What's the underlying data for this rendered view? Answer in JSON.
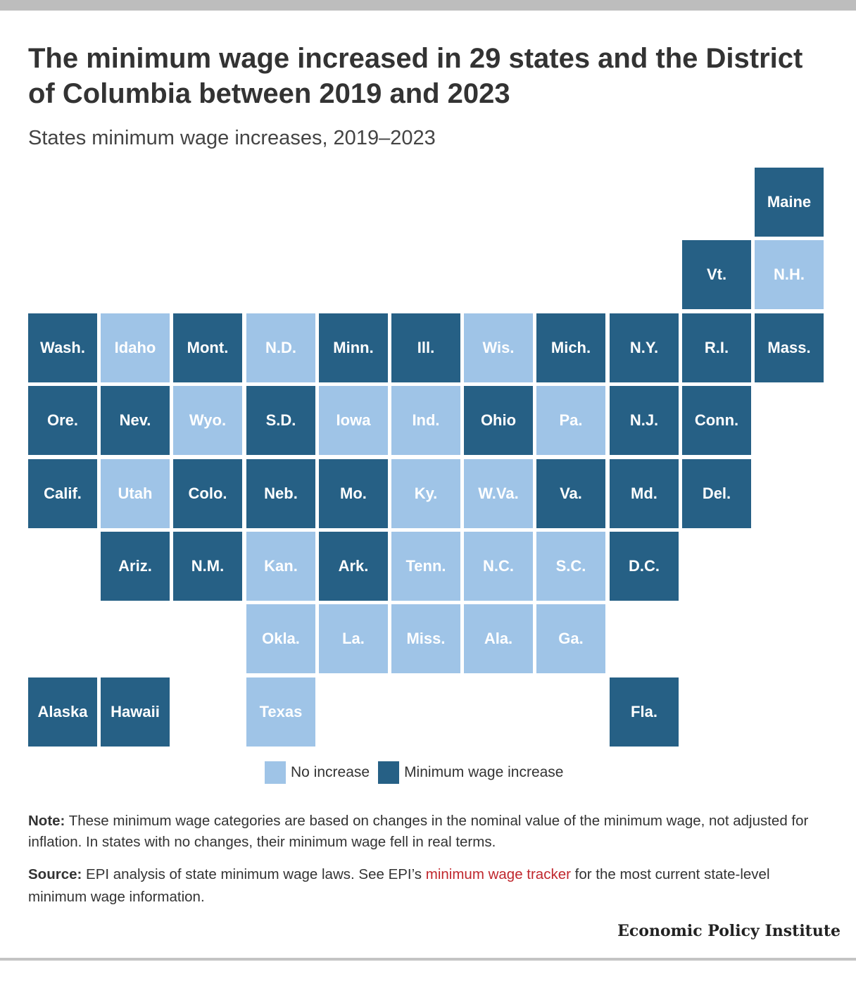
{
  "header": {
    "title": "The minimum wage increased in 29 states and the District of Columbia between 2019 and 2023",
    "subtitle": "States minimum wage increases, 2019–2023"
  },
  "chart_data": {
    "type": "tile-grid map",
    "categories": [
      {
        "key": "no",
        "label": "No increase",
        "color": "#9fc4e7"
      },
      {
        "key": "inc",
        "label": "Minimum wage increase",
        "color": "#266085"
      }
    ],
    "states": [
      {
        "name": "Maine",
        "row": 0,
        "col": 10,
        "category": "inc"
      },
      {
        "name": "Vt.",
        "row": 1,
        "col": 9,
        "category": "inc"
      },
      {
        "name": "N.H.",
        "row": 1,
        "col": 10,
        "category": "no"
      },
      {
        "name": "Wash.",
        "row": 2,
        "col": 0,
        "category": "inc"
      },
      {
        "name": "Idaho",
        "row": 2,
        "col": 1,
        "category": "no"
      },
      {
        "name": "Mont.",
        "row": 2,
        "col": 2,
        "category": "inc"
      },
      {
        "name": "N.D.",
        "row": 2,
        "col": 3,
        "category": "no"
      },
      {
        "name": "Minn.",
        "row": 2,
        "col": 4,
        "category": "inc"
      },
      {
        "name": "Ill.",
        "row": 2,
        "col": 5,
        "category": "inc"
      },
      {
        "name": "Wis.",
        "row": 2,
        "col": 6,
        "category": "no"
      },
      {
        "name": "Mich.",
        "row": 2,
        "col": 7,
        "category": "inc"
      },
      {
        "name": "N.Y.",
        "row": 2,
        "col": 8,
        "category": "inc"
      },
      {
        "name": "R.I.",
        "row": 2,
        "col": 9,
        "category": "inc"
      },
      {
        "name": "Mass.",
        "row": 2,
        "col": 10,
        "category": "inc"
      },
      {
        "name": "Ore.",
        "row": 3,
        "col": 0,
        "category": "inc"
      },
      {
        "name": "Nev.",
        "row": 3,
        "col": 1,
        "category": "inc"
      },
      {
        "name": "Wyo.",
        "row": 3,
        "col": 2,
        "category": "no"
      },
      {
        "name": "S.D.",
        "row": 3,
        "col": 3,
        "category": "inc"
      },
      {
        "name": "Iowa",
        "row": 3,
        "col": 4,
        "category": "no"
      },
      {
        "name": "Ind.",
        "row": 3,
        "col": 5,
        "category": "no"
      },
      {
        "name": "Ohio",
        "row": 3,
        "col": 6,
        "category": "inc"
      },
      {
        "name": "Pa.",
        "row": 3,
        "col": 7,
        "category": "no"
      },
      {
        "name": "N.J.",
        "row": 3,
        "col": 8,
        "category": "inc"
      },
      {
        "name": "Conn.",
        "row": 3,
        "col": 9,
        "category": "inc"
      },
      {
        "name": "Calif.",
        "row": 4,
        "col": 0,
        "category": "inc"
      },
      {
        "name": "Utah",
        "row": 4,
        "col": 1,
        "category": "no"
      },
      {
        "name": "Colo.",
        "row": 4,
        "col": 2,
        "category": "inc"
      },
      {
        "name": "Neb.",
        "row": 4,
        "col": 3,
        "category": "inc"
      },
      {
        "name": "Mo.",
        "row": 4,
        "col": 4,
        "category": "inc"
      },
      {
        "name": "Ky.",
        "row": 4,
        "col": 5,
        "category": "no"
      },
      {
        "name": "W.Va.",
        "row": 4,
        "col": 6,
        "category": "no"
      },
      {
        "name": "Va.",
        "row": 4,
        "col": 7,
        "category": "inc"
      },
      {
        "name": "Md.",
        "row": 4,
        "col": 8,
        "category": "inc"
      },
      {
        "name": "Del.",
        "row": 4,
        "col": 9,
        "category": "inc"
      },
      {
        "name": "Ariz.",
        "row": 5,
        "col": 1,
        "category": "inc"
      },
      {
        "name": "N.M.",
        "row": 5,
        "col": 2,
        "category": "inc"
      },
      {
        "name": "Kan.",
        "row": 5,
        "col": 3,
        "category": "no"
      },
      {
        "name": "Ark.",
        "row": 5,
        "col": 4,
        "category": "inc"
      },
      {
        "name": "Tenn.",
        "row": 5,
        "col": 5,
        "category": "no"
      },
      {
        "name": "N.C.",
        "row": 5,
        "col": 6,
        "category": "no"
      },
      {
        "name": "S.C.",
        "row": 5,
        "col": 7,
        "category": "no"
      },
      {
        "name": "D.C.",
        "row": 5,
        "col": 8,
        "category": "inc"
      },
      {
        "name": "Okla.",
        "row": 6,
        "col": 3,
        "category": "no"
      },
      {
        "name": "La.",
        "row": 6,
        "col": 4,
        "category": "no"
      },
      {
        "name": "Miss.",
        "row": 6,
        "col": 5,
        "category": "no"
      },
      {
        "name": "Ala.",
        "row": 6,
        "col": 6,
        "category": "no"
      },
      {
        "name": "Ga.",
        "row": 6,
        "col": 7,
        "category": "no"
      },
      {
        "name": "Alaska",
        "row": 7,
        "col": 0,
        "category": "inc"
      },
      {
        "name": "Hawaii",
        "row": 7,
        "col": 1,
        "category": "inc"
      },
      {
        "name": "Texas",
        "row": 7,
        "col": 3,
        "category": "no"
      },
      {
        "name": "Fla.",
        "row": 7,
        "col": 8,
        "category": "inc"
      }
    ]
  },
  "legend": {
    "no_label": "No increase",
    "inc_label": "Minimum wage increase"
  },
  "footer": {
    "note_label": "Note:",
    "note_text": " These minimum wage categories are based on changes in the nominal value of the minimum wage, not adjusted for inflation. In states with no changes, their minimum wage fell in real terms.",
    "source_label": "Source:",
    "source_text_before": " EPI analysis of state minimum wage laws. See EPI’s ",
    "source_link": "minimum wage tracker",
    "source_text_after": " for the most current state-level minimum wage information.",
    "brand": "Economic Policy Institute"
  }
}
